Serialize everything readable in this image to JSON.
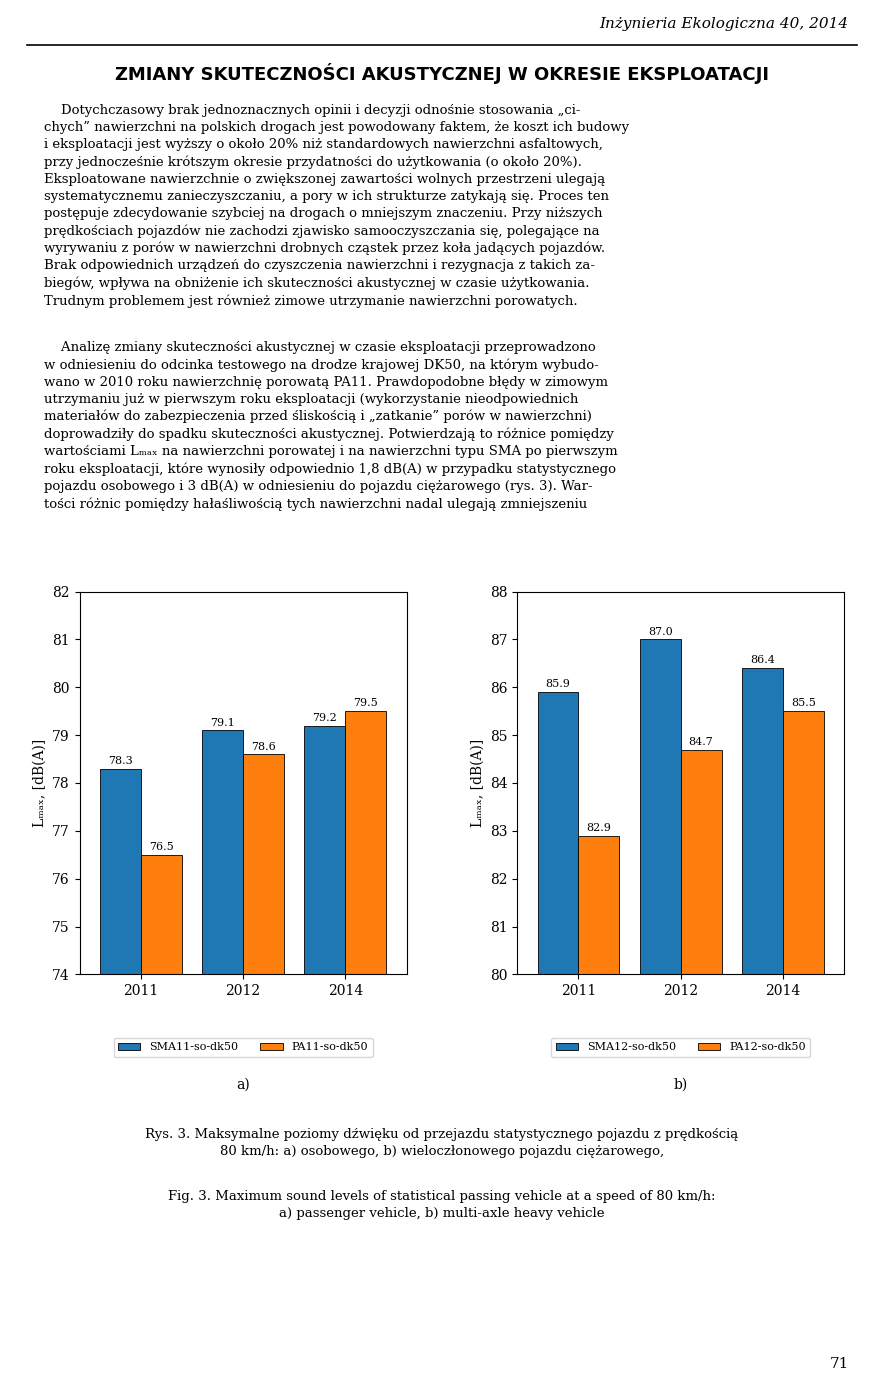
{
  "header_text": "Inżynieria Ekologiczna 40, 2014",
  "title": "ZMIANY SKUTECZNOŚCI AKUSTYCZNEJ W OKRESIE EKSPLOATACJI",
  "body_paragraphs": [
    "    Dotychczasowy brak jednoznacznych opinii i decyzji odnośnie stosowania „ci-\nchych” nawierzchni na polskich drogach jest powodowany faktem, że koszt ich budowy\ni eksploatacji jest wyższy o około 20% niż standardowych nawierzchni asfaltowych,\nprzy jednocześnie krótszym okresie przydatności do użytkowania (o około 20%).\nEksploatowane nawierzchnie o zwiększonej zawartości wolnych przestrzeni ulegają\nsystematycznemu zanieczyszczaniu, a pory w ich strukturze zatykają się. Proces ten\npostępuje zdecydowanie szybciej na drogach o mniejszym znaczeniu. Przy niższych\nprędkościach pojazdów nie zachodzi zjawisko samooczyszczania się, polegające na\nwyrywaniu z porów w nawierzchni drobnych cząstek przez koła jadących pojazdów.\nBrak odpowiednich urządzeń do czyszczenia nawierzchni i rezygnacja z takich za-\nbiegów, wpływa na obniżenie ich skuteczności akustycznej w czasie użytkowania.\nTrudnym problemem jest również zimowe utrzymanie nawierzchni porowatych.",
    "    Analizę zmiany skuteczności akustycznej w czasie eksploatacji przeprowadzono\nw odniesieniu do odcinka testowego na drodze krajowej DK50, na którym wybudo-\nwano w 2010 roku nawierzchnię porowatą PA11. Prawdopodobne błędy w zimowym\nutrzymaniu już w pierwszym roku eksploatacji (wykorzystanie nieodpowiednich\nmateriałów do zabezpieczenia przed śliskością i „zatkanie” porów w nawierzchni)\ndoprowadziły do spadku skuteczności akustycznej. Potwierdzają to różnice pomiędzy\nwartościami Lₘₐₓ na nawierzchni porowatej i na nawierzchni typu SMA po pierwszym\nroku eksploatacji, które wynosiły odpowiednio 1,8 dB(A) w przypadku statystycznego\npojazdu osobowego i 3 dB(A) w odniesieniu do pojazdu ciężarowego (rys. 3). War-\ntości różnic pomiędzy hałaśliwością tych nawierzchni nadal ulegają zmniejszeniu"
  ],
  "caption": [
    "Rys. 3. Maksymalne poziomy dźwięku od przejazdu statystycznego pojazdu z prędkością\n80 km/h: a) osobowego, b) wieloczłonowego pojazdu ciężarowego,",
    "Fig. 3. Maximum sound levels of statistical passing vehicle at a speed of 80 km/h:\na) passenger vehicle, b) multi-axle heavy vehicle"
  ],
  "page_number": "71",
  "chart_data": [
    {
      "type": "bar",
      "panel_label": "a)",
      "categories": [
        "2011",
        "2012",
        "2014"
      ],
      "series": [
        {
          "name": "SMA11-so-dk50",
          "values": [
            78.3,
            79.1,
            79.2
          ]
        },
        {
          "name": "PA11-so-dk50",
          "values": [
            76.5,
            78.6,
            79.5
          ]
        }
      ],
      "ylim": [
        74,
        82
      ],
      "yticks": [
        74,
        75,
        76,
        77,
        78,
        79,
        80,
        81,
        82
      ],
      "ylabel": "Lₘₐₓ, [dB(A)]",
      "data_labels": true,
      "legend": "lower center"
    },
    {
      "type": "bar",
      "panel_label": "b)",
      "categories": [
        "2011",
        "2012",
        "2014"
      ],
      "series": [
        {
          "name": "SMA12-so-dk50",
          "values": [
            85.9,
            87.0,
            86.4
          ]
        },
        {
          "name": "PA12-so-dk50",
          "values": [
            82.9,
            84.7,
            85.5
          ]
        }
      ],
      "ylim": [
        80,
        88
      ],
      "yticks": [
        80,
        81,
        82,
        83,
        84,
        85,
        86,
        87,
        88
      ],
      "ylabel": "Lₘₐₓ, [dB(A)]",
      "data_labels": true,
      "legend": "lower center"
    }
  ]
}
